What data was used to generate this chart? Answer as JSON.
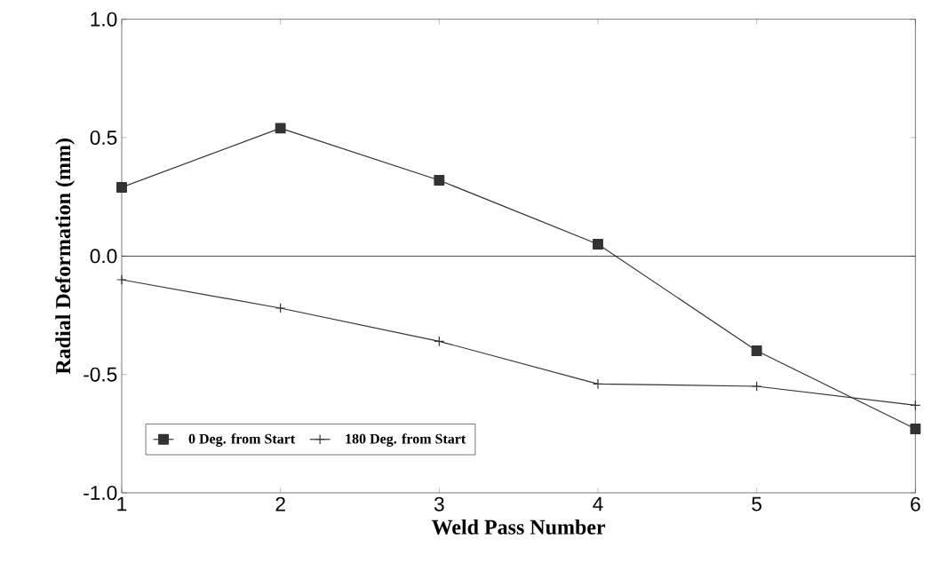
{
  "chart_data": {
    "type": "line",
    "xlabel": "Weld Pass Number",
    "ylabel": "Radial Deformation (mm)",
    "x": [
      1,
      2,
      3,
      4,
      5,
      6
    ],
    "series": [
      {
        "name": "0 Deg. from Start",
        "color": "#333333",
        "marker": "square",
        "values": [
          0.29,
          0.54,
          0.32,
          0.05,
          -0.4,
          -0.73
        ]
      },
      {
        "name": "180 Deg. from Start",
        "color": "#333333",
        "marker": "cross",
        "values": [
          -0.1,
          -0.22,
          -0.36,
          -0.54,
          -0.55,
          -0.63
        ]
      }
    ],
    "xlim": [
      1,
      6
    ],
    "ylim": [
      -1,
      1
    ],
    "xticks": [
      1,
      2,
      3,
      4,
      5,
      6
    ],
    "yticks": [
      {
        "value": -1,
        "label": "-1.0"
      },
      {
        "value": -0.5,
        "label": "-0.5"
      },
      {
        "value": 0,
        "label": "0.0"
      },
      {
        "value": 0.5,
        "label": "0.5"
      },
      {
        "value": 1,
        "label": "1.0"
      }
    ],
    "ref_lines": [
      {
        "axis": "y",
        "value": 0
      }
    ],
    "legend": "bottom left",
    "line_style": "solid"
  }
}
